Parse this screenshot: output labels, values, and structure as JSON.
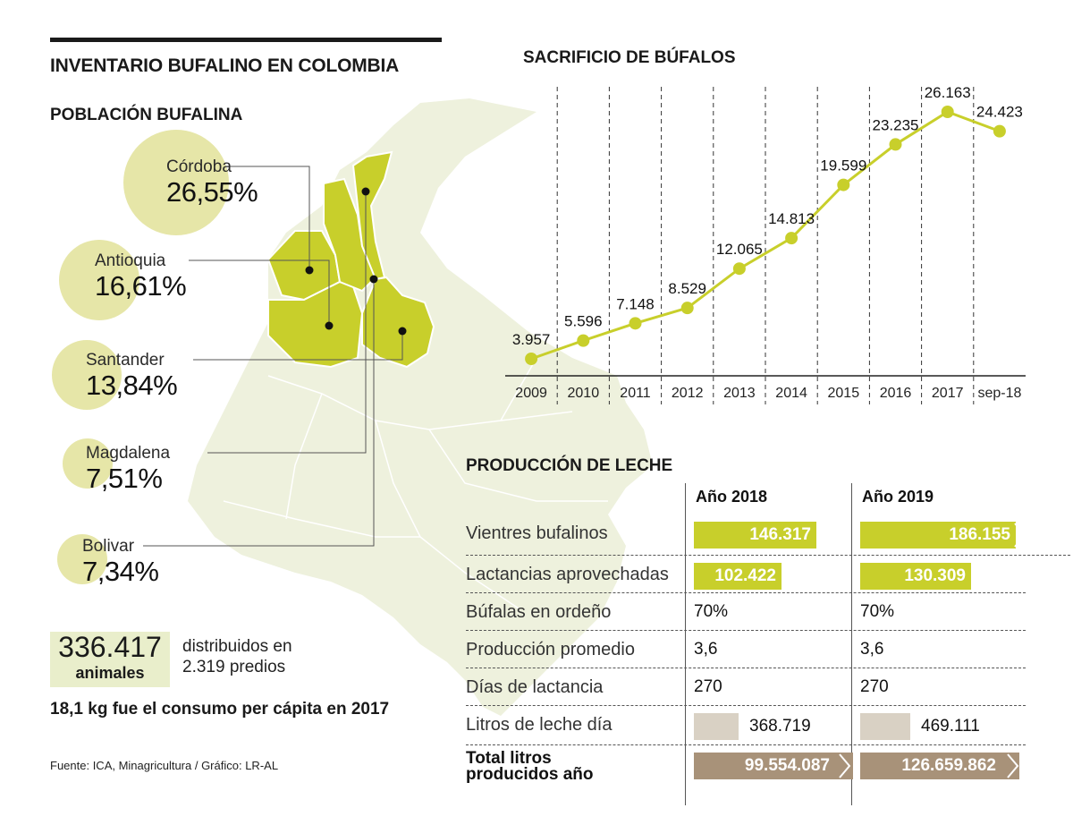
{
  "title": "INVENTARIO BUFALINO EN COLOMBIA",
  "population": {
    "title": "POBLACIÓN BUFALINA",
    "items": [
      {
        "name": "Córdoba",
        "percent": "26,55%"
      },
      {
        "name": "Antioquia",
        "percent": "16,61%"
      },
      {
        "name": "Santander",
        "percent": "13,84%"
      },
      {
        "name": "Magdalena",
        "percent": "7,51%"
      },
      {
        "name": "Bolivar",
        "percent": "7,34%"
      }
    ],
    "total": "336.417",
    "total_unit": "animales",
    "distributed_line1": "distribuidos en",
    "distributed_line2": "2.319 predios",
    "consumption": "18,1 kg fue el consumo per cápita en 2017"
  },
  "source": "Fuente: ICA, Minagricultura / Gráfico: LR-AL",
  "colors": {
    "accent": "#c8cf2b",
    "circle": "#e6e6a8",
    "map": "#eef1dd",
    "tan_light": "#d9d1c4",
    "tan_dark": "#a89279"
  },
  "chart_data": [
    {
      "type": "line",
      "title": "SACRIFICIO DE BÚFALOS",
      "categories": [
        "2009",
        "2010",
        "2011",
        "2012",
        "2013",
        "2014",
        "2015",
        "2016",
        "2017",
        "sep-18"
      ],
      "values": [
        3957,
        5596,
        7148,
        8529,
        12065,
        14813,
        19599,
        23235,
        26163,
        24423
      ],
      "labels": [
        "3.957",
        "5.596",
        "7.148",
        "8.529",
        "12.065",
        "14.813",
        "19.599",
        "23.235",
        "26.163",
        "24.423"
      ],
      "ylim": [
        0,
        27000
      ],
      "grid": "dashed vertical separators"
    },
    {
      "type": "table",
      "title": "PRODUCCIÓN DE LECHE",
      "columns": [
        "Año 2018",
        "Año 2019"
      ],
      "rows": [
        {
          "label": "Vientres bufalinos",
          "v2018": "146.317",
          "v2019": "186.155",
          "n2018": 146317,
          "n2019": 186155,
          "style": "green"
        },
        {
          "label": "Lactancias aprovechadas",
          "v2018": "102.422",
          "v2019": "130.309",
          "n2018": 102422,
          "n2019": 130309,
          "style": "green"
        },
        {
          "label": "Búfalas en ordeño",
          "v2018": "70%",
          "v2019": "70%",
          "style": "text"
        },
        {
          "label": "Producción promedio",
          "v2018": "3,6",
          "v2019": "3,6",
          "style": "text"
        },
        {
          "label": "Días de lactancia",
          "v2018": "270",
          "v2019": "270",
          "style": "text"
        },
        {
          "label": "Litros de leche día",
          "v2018": "368.719",
          "v2019": "469.111",
          "n2018": 368719,
          "n2019": 469111,
          "style": "tan_light"
        },
        {
          "label_line1": "Total litros",
          "label_line2": "producidos año",
          "v2018": "99.554.087",
          "v2019": "126.659.862",
          "n2018": 99554087,
          "n2019": 126659862,
          "style": "tan_dark"
        }
      ]
    }
  ]
}
